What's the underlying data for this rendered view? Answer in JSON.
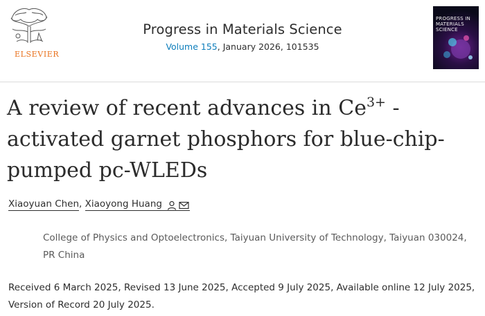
{
  "header": {
    "publisher": {
      "name": "ELSEVIER",
      "logo_icon": "elsevier-tree-icon",
      "accent_color": "#e9711c"
    },
    "journal": {
      "title": "Progress in Materials Science",
      "volume_label": "Volume 155",
      "issue_rest": ", January 2026, 101535",
      "link_color": "#0c7dbb"
    },
    "cover": {
      "title": "Progress in Materials Science"
    }
  },
  "article": {
    "title_before_sup": "A review of recent advances in Ce",
    "title_sup": "3+",
    "title_after_sup": " -activated garnet phosphors for blue-chip-pumped pc-WLEDs"
  },
  "authors": {
    "list": [
      {
        "name": "Xiaoyuan Chen",
        "separator": ", "
      },
      {
        "name": "Xiaoyong Huang",
        "icons": [
          "person-icon",
          "envelope-icon"
        ]
      }
    ]
  },
  "affiliation": "College of Physics and Optoelectronics, Taiyuan University of Technology, Taiyuan 030024, PR China",
  "dates": "Received 6 March 2025, Revised 13 June 2025, Accepted 9 July 2025, Available online 12 July 2025, Version of Record 20 July 2025."
}
